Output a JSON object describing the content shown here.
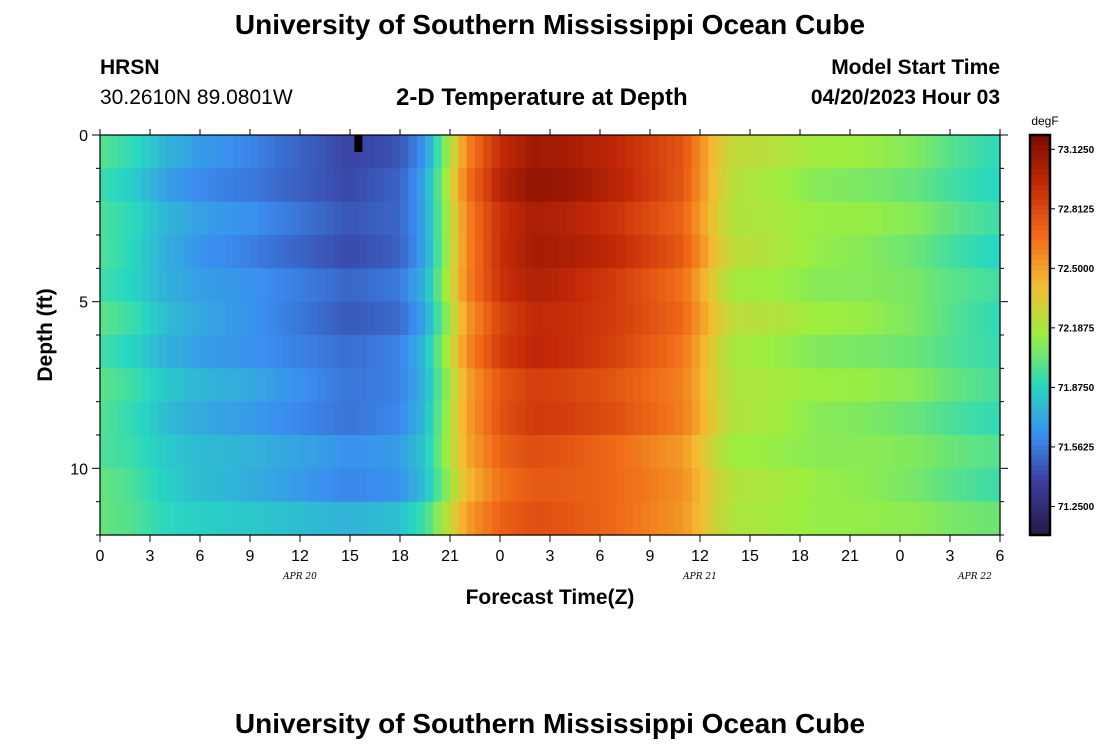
{
  "header": {
    "title": "University of Southern Mississippi Ocean Cube",
    "station": "HRSN",
    "coords": "30.2610N  89.0801W",
    "subtitle": "2-D Temperature at Depth",
    "model_start_label": "Model Start Time",
    "model_start_value": "04/20/2023 Hour 03"
  },
  "footer": {
    "title_repeat": "University of Southern Mississippi Ocean Cube"
  },
  "chart_data": {
    "type": "heatmap",
    "xlabel": "Forecast Time(Z)",
    "ylabel": "Depth (ft)",
    "x_range_hours": [
      0,
      54
    ],
    "x_ticks": [
      "0",
      "3",
      "6",
      "9",
      "12",
      "15",
      "18",
      "21",
      "0",
      "3",
      "6",
      "9",
      "12",
      "15",
      "18",
      "21",
      "0",
      "3",
      "6"
    ],
    "x_day_labels": [
      {
        "label": "APR 20",
        "hour": 12
      },
      {
        "label": "APR 21",
        "hour": 36
      },
      {
        "label": "APR 22",
        "hour": 52.5
      }
    ],
    "y_range_ft": [
      0,
      12
    ],
    "y_ticks": [
      0,
      5,
      10
    ],
    "colorbar": {
      "unit": "degF",
      "min": 71.1,
      "max": 73.2,
      "tick_values": [
        73.125,
        72.8125,
        72.5,
        72.1875,
        71.875,
        71.5625,
        71.25
      ],
      "tick_labels": [
        "73.1250",
        "72.8125",
        "72.5000",
        "72.1875",
        "71.8750",
        "71.5625",
        "71.2500"
      ],
      "colors": [
        "#2a1848",
        "#3a3a9a",
        "#3a8ef0",
        "#28d8c0",
        "#9cee40",
        "#f5bb30",
        "#f06a18",
        "#c42a08",
        "#7a0a00"
      ]
    },
    "time_profile_degF": [
      [
        0,
        71.96
      ],
      [
        2,
        71.87
      ],
      [
        4,
        71.72
      ],
      [
        6,
        71.64
      ],
      [
        9,
        71.58
      ],
      [
        12,
        71.49
      ],
      [
        15,
        71.4
      ],
      [
        18,
        71.47
      ],
      [
        19.5,
        71.69
      ],
      [
        21,
        72.23
      ],
      [
        22,
        72.62
      ],
      [
        24,
        72.97
      ],
      [
        26,
        73.1
      ],
      [
        28,
        73.07
      ],
      [
        31,
        72.97
      ],
      [
        33,
        72.86
      ],
      [
        35,
        72.75
      ],
      [
        36,
        72.56
      ],
      [
        37,
        72.36
      ],
      [
        38,
        72.23
      ],
      [
        40,
        72.2
      ],
      [
        43,
        72.13
      ],
      [
        46,
        72.11
      ],
      [
        49,
        72.06
      ],
      [
        51,
        71.98
      ],
      [
        53,
        71.92
      ],
      [
        54,
        71.9
      ]
    ],
    "max_marker": {
      "hour": 15.5,
      "depth_ft": 0
    }
  }
}
